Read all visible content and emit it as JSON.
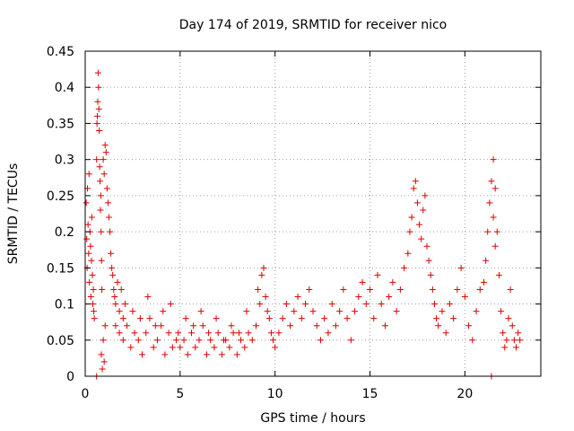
{
  "chart_data": {
    "type": "scatter",
    "title": "Day 174 of 2019, SRMTID for receiver nico",
    "xlabel": "GPS time / hours",
    "ylabel": "SRMTID / TECUs",
    "xlim": [
      0,
      24
    ],
    "ylim": [
      0,
      0.45
    ],
    "xticks": [
      0,
      5,
      10,
      15,
      20
    ],
    "yticks": [
      0,
      0.05,
      0.1,
      0.15,
      0.2,
      0.25,
      0.3,
      0.35,
      0.4,
      0.45
    ],
    "xtick_labels": [
      "0",
      "5",
      "10",
      "15",
      "20"
    ],
    "ytick_labels": [
      "0",
      "0.05",
      "0.1",
      "0.15",
      "0.2",
      "0.25",
      "0.3",
      "0.35",
      "0.4",
      "0.45"
    ],
    "grid": true,
    "marker": "+",
    "color": "#e00000",
    "series": [
      {
        "name": "SRMTID",
        "points": [
          [
            0.05,
            0.24
          ],
          [
            0.08,
            0.19
          ],
          [
            0.1,
            0.15
          ],
          [
            0.12,
            0.26
          ],
          [
            0.15,
            0.21
          ],
          [
            0.18,
            0.17
          ],
          [
            0.2,
            0.28
          ],
          [
            0.22,
            0.13
          ],
          [
            0.25,
            0.2
          ],
          [
            0.28,
            0.18
          ],
          [
            0.3,
            0.11
          ],
          [
            0.33,
            0.16
          ],
          [
            0.35,
            0.22
          ],
          [
            0.38,
            0.14
          ],
          [
            0.4,
            0.1
          ],
          [
            0.43,
            0.12
          ],
          [
            0.45,
            0.09
          ],
          [
            0.48,
            0.08
          ],
          [
            0.6,
            0.3
          ],
          [
            0.62,
            0.35
          ],
          [
            0.64,
            0.36
          ],
          [
            0.66,
            0.38
          ],
          [
            0.68,
            0.42
          ],
          [
            0.7,
            0.4
          ],
          [
            0.72,
            0.37
          ],
          [
            0.74,
            0.34
          ],
          [
            0.76,
            0.29
          ],
          [
            0.78,
            0.27
          ],
          [
            0.8,
            0.23
          ],
          [
            0.82,
            0.25
          ],
          [
            0.84,
            0.2
          ],
          [
            0.86,
            0.16
          ],
          [
            0.88,
            0.12
          ],
          [
            0.85,
            0.03
          ],
          [
            0.9,
            0.01
          ],
          [
            0.95,
            0.05
          ],
          [
            1.0,
            0.02
          ],
          [
            1.05,
            0.07
          ],
          [
            0.95,
            0.3
          ],
          [
            1.0,
            0.28
          ],
          [
            1.05,
            0.32
          ],
          [
            1.1,
            0.31
          ],
          [
            1.15,
            0.26
          ],
          [
            1.2,
            0.24
          ],
          [
            1.25,
            0.22
          ],
          [
            1.3,
            0.2
          ],
          [
            1.35,
            0.17
          ],
          [
            1.4,
            0.15
          ],
          [
            1.45,
            0.14
          ],
          [
            1.5,
            0.12
          ],
          [
            1.55,
            0.11
          ],
          [
            1.6,
            0.1
          ],
          [
            1.7,
            0.13
          ],
          [
            1.8,
            0.09
          ],
          [
            1.9,
            0.12
          ],
          [
            2.0,
            0.08
          ],
          [
            1.6,
            0.07
          ],
          [
            1.8,
            0.06
          ],
          [
            2.0,
            0.05
          ],
          [
            2.2,
            0.07
          ],
          [
            2.4,
            0.04
          ],
          [
            2.6,
            0.06
          ],
          [
            2.8,
            0.05
          ],
          [
            3.0,
            0.03
          ],
          [
            3.2,
            0.06
          ],
          [
            3.4,
            0.08
          ],
          [
            3.6,
            0.04
          ],
          [
            3.8,
            0.05
          ],
          [
            4.0,
            0.07
          ],
          [
            4.2,
            0.03
          ],
          [
            4.4,
            0.06
          ],
          [
            4.6,
            0.04
          ],
          [
            4.8,
            0.05
          ],
          [
            2.1,
            0.1
          ],
          [
            2.5,
            0.09
          ],
          [
            2.9,
            0.08
          ],
          [
            3.3,
            0.11
          ],
          [
            3.7,
            0.07
          ],
          [
            4.1,
            0.09
          ],
          [
            4.5,
            0.1
          ],
          [
            4.9,
            0.06
          ],
          [
            5.3,
            0.08
          ],
          [
            5.7,
            0.07
          ],
          [
            6.1,
            0.09
          ],
          [
            6.5,
            0.06
          ],
          [
            6.9,
            0.08
          ],
          [
            7.3,
            0.05
          ],
          [
            7.7,
            0.07
          ],
          [
            8.1,
            0.06
          ],
          [
            8.5,
            0.09
          ],
          [
            5.0,
            0.04
          ],
          [
            5.2,
            0.05
          ],
          [
            5.4,
            0.03
          ],
          [
            5.6,
            0.06
          ],
          [
            5.8,
            0.04
          ],
          [
            6.0,
            0.05
          ],
          [
            6.2,
            0.07
          ],
          [
            6.4,
            0.03
          ],
          [
            6.6,
            0.05
          ],
          [
            6.8,
            0.04
          ],
          [
            7.0,
            0.06
          ],
          [
            7.2,
            0.03
          ],
          [
            7.4,
            0.05
          ],
          [
            7.6,
            0.04
          ],
          [
            7.8,
            0.06
          ],
          [
            8.0,
            0.03
          ],
          [
            8.2,
            0.05
          ],
          [
            8.4,
            0.04
          ],
          [
            8.6,
            0.06
          ],
          [
            8.8,
            0.05
          ],
          [
            9.0,
            0.07
          ],
          [
            9.1,
            0.12
          ],
          [
            9.2,
            0.1
          ],
          [
            9.3,
            0.14
          ],
          [
            9.4,
            0.15
          ],
          [
            9.5,
            0.11
          ],
          [
            9.6,
            0.09
          ],
          [
            9.7,
            0.08
          ],
          [
            9.8,
            0.06
          ],
          [
            9.9,
            0.05
          ],
          [
            10.0,
            0.04
          ],
          [
            10.2,
            0.06
          ],
          [
            10.4,
            0.08
          ],
          [
            10.6,
            0.1
          ],
          [
            10.8,
            0.07
          ],
          [
            11.0,
            0.09
          ],
          [
            11.2,
            0.11
          ],
          [
            11.4,
            0.08
          ],
          [
            11.6,
            0.1
          ],
          [
            11.8,
            0.12
          ],
          [
            12.0,
            0.09
          ],
          [
            12.2,
            0.07
          ],
          [
            12.4,
            0.05
          ],
          [
            12.6,
            0.08
          ],
          [
            12.8,
            0.06
          ],
          [
            13.0,
            0.1
          ],
          [
            13.2,
            0.07
          ],
          [
            13.4,
            0.09
          ],
          [
            13.6,
            0.12
          ],
          [
            13.8,
            0.08
          ],
          [
            14.0,
            0.05
          ],
          [
            14.2,
            0.09
          ],
          [
            14.4,
            0.11
          ],
          [
            14.6,
            0.13
          ],
          [
            14.8,
            0.1
          ],
          [
            15.0,
            0.12
          ],
          [
            15.2,
            0.08
          ],
          [
            15.4,
            0.14
          ],
          [
            15.6,
            0.1
          ],
          [
            15.8,
            0.07
          ],
          [
            16.0,
            0.11
          ],
          [
            16.2,
            0.13
          ],
          [
            16.4,
            0.09
          ],
          [
            16.6,
            0.12
          ],
          [
            16.8,
            0.15
          ],
          [
            17.0,
            0.17
          ],
          [
            17.1,
            0.2
          ],
          [
            17.2,
            0.22
          ],
          [
            17.3,
            0.26
          ],
          [
            17.4,
            0.27
          ],
          [
            17.5,
            0.24
          ],
          [
            17.6,
            0.21
          ],
          [
            17.7,
            0.19
          ],
          [
            17.8,
            0.23
          ],
          [
            17.9,
            0.25
          ],
          [
            18.0,
            0.18
          ],
          [
            18.1,
            0.16
          ],
          [
            18.2,
            0.14
          ],
          [
            18.3,
            0.12
          ],
          [
            18.4,
            0.1
          ],
          [
            18.5,
            0.08
          ],
          [
            18.6,
            0.07
          ],
          [
            18.8,
            0.09
          ],
          [
            19.0,
            0.06
          ],
          [
            19.2,
            0.1
          ],
          [
            19.4,
            0.08
          ],
          [
            19.6,
            0.12
          ],
          [
            19.8,
            0.15
          ],
          [
            20.0,
            0.11
          ],
          [
            20.2,
            0.07
          ],
          [
            20.4,
            0.05
          ],
          [
            20.6,
            0.09
          ],
          [
            20.8,
            0.12
          ],
          [
            21.0,
            0.13
          ],
          [
            21.1,
            0.16
          ],
          [
            21.2,
            0.2
          ],
          [
            21.3,
            0.24
          ],
          [
            21.4,
            0.27
          ],
          [
            21.5,
            0.22
          ],
          [
            21.6,
            0.18
          ],
          [
            21.5,
            0.3
          ],
          [
            21.6,
            0.26
          ],
          [
            21.7,
            0.2
          ],
          [
            21.8,
            0.14
          ],
          [
            21.9,
            0.09
          ],
          [
            22.0,
            0.06
          ],
          [
            22.1,
            0.04
          ],
          [
            22.2,
            0.05
          ],
          [
            22.3,
            0.08
          ],
          [
            22.4,
            0.12
          ],
          [
            22.5,
            0.07
          ],
          [
            22.6,
            0.05
          ],
          [
            22.7,
            0.04
          ],
          [
            22.8,
            0.06
          ],
          [
            22.9,
            0.05
          ],
          [
            0.6,
            0.0
          ],
          [
            21.4,
            0.0
          ]
        ]
      }
    ]
  }
}
